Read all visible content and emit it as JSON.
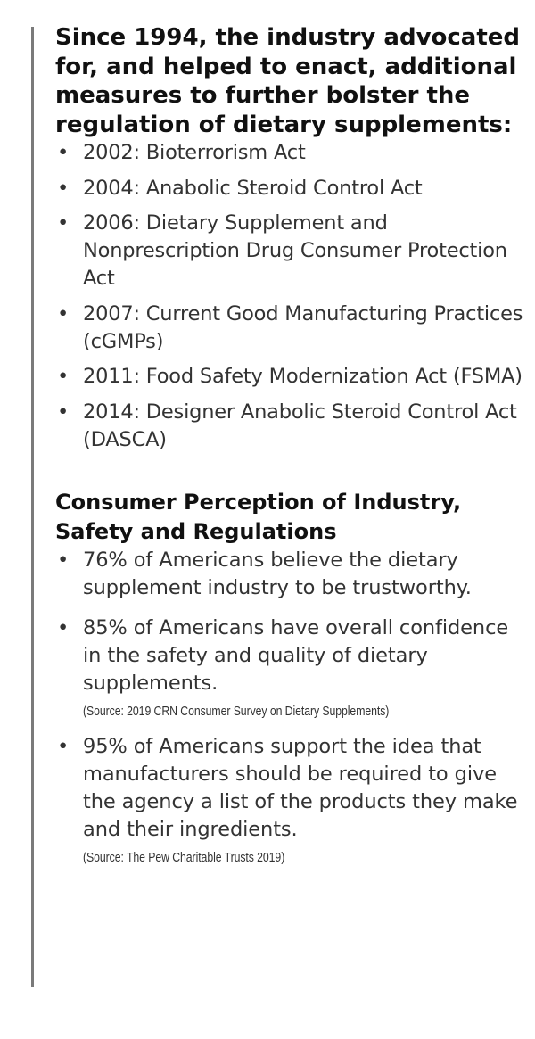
{
  "heading_1": "Since 1994, the industry advocated for, and helped to enact, additional measures to further bolster the regulation of dietary supplements:",
  "milestones": [
    "2002: Bioterrorism Act",
    "2004: Anabolic Steroid Control Act",
    "2006: Dietary Supplement and Nonprescription Drug Consumer Protection Act",
    "2007: Current Good Manufacturing Practices (cGMPs)",
    "2011: Food Safety Modernization Act (FSMA)",
    "2014: Designer Anabolic Steroid Control Act (DASCA)"
  ],
  "heading_2": "Consumer Perception of Industry, Safety and Regulations",
  "perception": [
    {
      "text": "76% of Americans believe the dietary supplement industry to be trustworthy.",
      "source": ""
    },
    {
      "text": "85% of Americans have overall confidence in the safety and quality of dietary supplements.",
      "source": "(Source: 2019 CRN Consumer Survey on Dietary Supplements)"
    },
    {
      "text": "95% of Americans support the idea that manufacturers should be required to give the agency a list of the products they make and their ingredients.",
      "source": "(Source: The Pew Charitable Trusts 2019)"
    }
  ],
  "bullet_glyph": "•",
  "colors": {
    "heading": "#111111",
    "body_text": "#333333",
    "rule": "#7a7a7a",
    "background": "#ffffff"
  }
}
